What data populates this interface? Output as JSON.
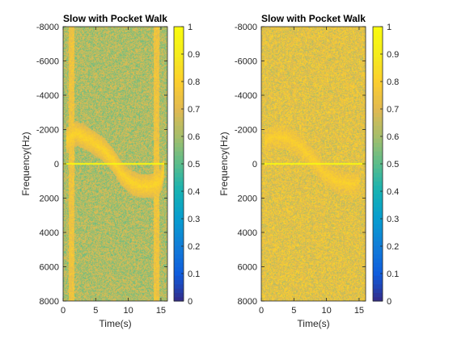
{
  "chart_data": [
    {
      "type": "heatmap",
      "title": "Slow with Pocket Walk",
      "xlabel": "Time(s)",
      "ylabel": "Frequency(Hz)",
      "xlim": [
        0,
        16
      ],
      "ylim": [
        -8000,
        8000
      ],
      "y_reversed": true,
      "xticks": [
        "0",
        "5",
        "10",
        "15"
      ],
      "yticks": [
        "-8000",
        "-6000",
        "-4000",
        "-2000",
        "0",
        "2000",
        "4000",
        "6000",
        "8000"
      ],
      "colorbar": {
        "min": 0,
        "max": 1,
        "ticks": [
          "0",
          "0.1",
          "0.2",
          "0.3",
          "0.4",
          "0.5",
          "0.6",
          "0.7",
          "0.8",
          "0.9",
          "1"
        ]
      },
      "colormap": "parula",
      "background_level": 0.62,
      "band_level": 0.75,
      "band_times": [
        1.3,
        14.3
      ],
      "dc_line_freq": 0,
      "dc_line_level": 0.98,
      "doppler_trace": {
        "level": 0.82,
        "points": [
          [
            0.5,
            -1400
          ],
          [
            2,
            -1800
          ],
          [
            4,
            -1400
          ],
          [
            6,
            -900
          ],
          [
            7.5,
            -300
          ],
          [
            9,
            600
          ],
          [
            10.5,
            1100
          ],
          [
            12,
            1300
          ],
          [
            13.5,
            1300
          ],
          [
            15,
            1000
          ],
          [
            15.5,
            200
          ]
        ]
      }
    },
    {
      "type": "heatmap",
      "title": "Slow with Pocket Walk",
      "xlabel": "Time(s)",
      "ylabel": "Frequency(Hz)",
      "xlim": [
        0,
        16
      ],
      "ylim": [
        -8000,
        8000
      ],
      "y_reversed": true,
      "xticks": [
        "0",
        "5",
        "10",
        "15"
      ],
      "yticks": [
        "-8000",
        "-6000",
        "-4000",
        "-2000",
        "0",
        "2000",
        "4000",
        "6000",
        "8000"
      ],
      "colorbar": {
        "min": 0,
        "max": 1,
        "ticks": [
          "0",
          "0.1",
          "0.2",
          "0.3",
          "0.4",
          "0.5",
          "0.6",
          "0.7",
          "0.8",
          "0.9",
          "1"
        ]
      },
      "colormap": "parula",
      "background_level": 0.72,
      "band_level": 0.72,
      "band_times": [],
      "dc_line_freq": 0,
      "dc_line_level": 0.98,
      "doppler_trace": {
        "level": 0.8,
        "points": [
          [
            0.5,
            -1300
          ],
          [
            2,
            -1600
          ],
          [
            4,
            -1500
          ],
          [
            6,
            -1000
          ],
          [
            8,
            -200
          ],
          [
            9.5,
            500
          ],
          [
            11,
            900
          ],
          [
            12.5,
            1100
          ],
          [
            14,
            1200
          ],
          [
            15,
            1000
          ]
        ]
      }
    }
  ]
}
